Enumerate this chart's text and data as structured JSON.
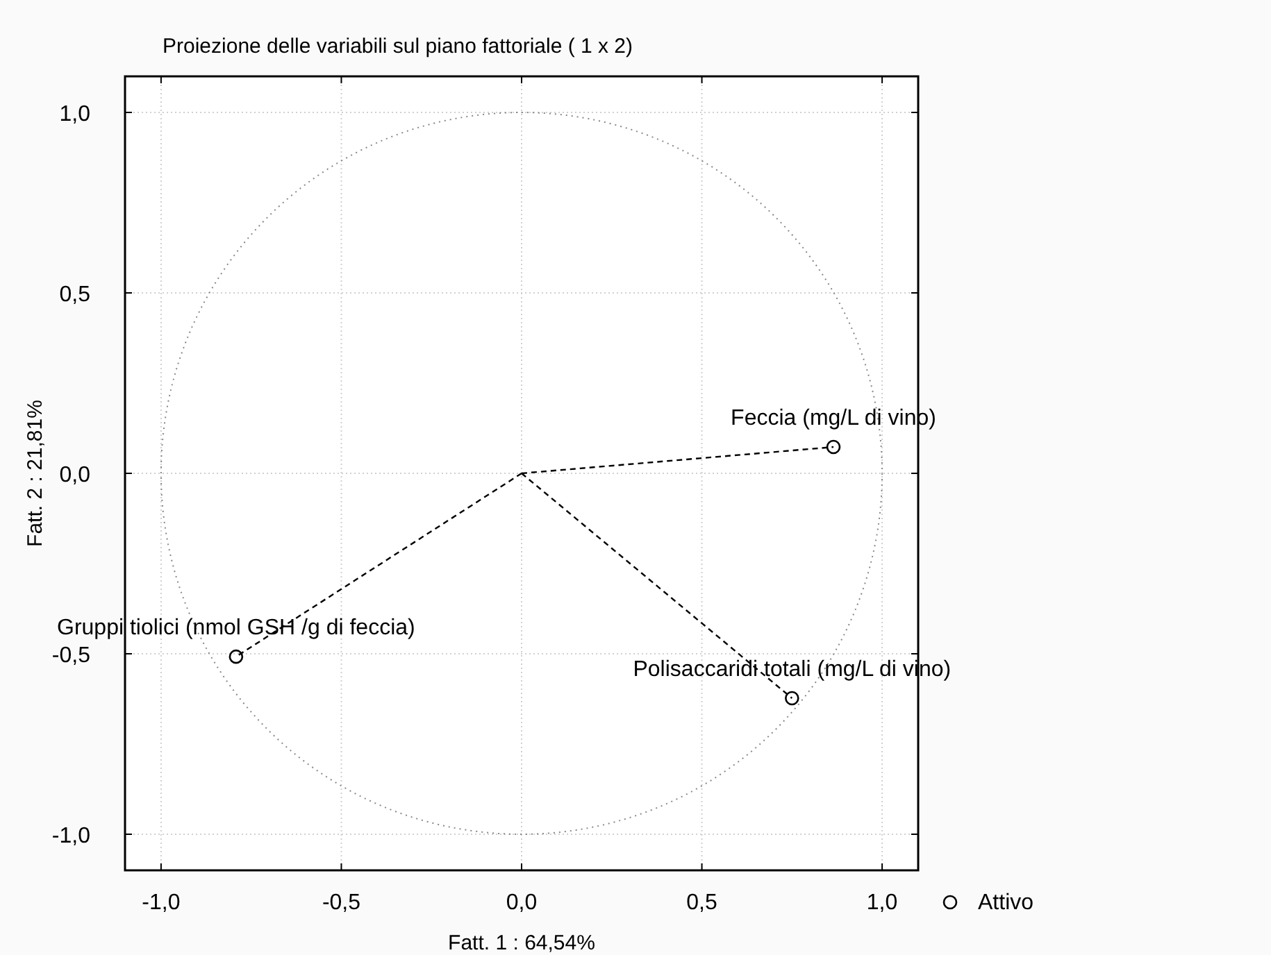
{
  "chart_data": {
    "type": "scatter",
    "title": "Proiezione delle variabili sul piano fattoriale (  1 x   2)",
    "xlabel": "Fatt.  1 : 64,54%",
    "ylabel": "Fatt.  2 : 21,81%",
    "xlim": [
      -1.1,
      1.1
    ],
    "ylim": [
      -1.1,
      1.1
    ],
    "xticks": [
      {
        "value": -1,
        "label": "-1,0"
      },
      {
        "value": -0.5,
        "label": "-0,5"
      },
      {
        "value": 0,
        "label": "0,0"
      },
      {
        "value": 0.5,
        "label": "0,5"
      },
      {
        "value": 1,
        "label": "1,0"
      }
    ],
    "yticks": [
      {
        "value": -1,
        "label": "-1,0"
      },
      {
        "value": -0.5,
        "label": "-0,5"
      },
      {
        "value": 0,
        "label": "0,0"
      },
      {
        "value": 0.5,
        "label": "0,5"
      },
      {
        "value": 1,
        "label": "1,0"
      }
    ],
    "grid": true,
    "legend": "bottom right",
    "series": [
      {
        "type": "line",
        "color": "#000000",
        "line_style": "dashed",
        "x": [
          0,
          0.865
        ],
        "values": [
          0,
          0.073
        ]
      },
      {
        "type": "line",
        "color": "#000000",
        "line_style": "dashed",
        "x": [
          0,
          -0.792
        ],
        "values": [
          0,
          -0.508
        ]
      },
      {
        "type": "line",
        "color": "#000000",
        "line_style": "dashed",
        "x": [
          0,
          0.75
        ],
        "values": [
          0,
          -0.623
        ]
      },
      {
        "name": "Attivo",
        "color": "#000000",
        "marker": "circle",
        "x": [
          0.865,
          -0.792,
          0.75
        ],
        "values": [
          0.073,
          -0.508,
          -0.623
        ]
      }
    ],
    "annotations": [
      {
        "text": "Feccia (mg/L di vino)",
        "x": 0.865,
        "y": 0.073
      },
      {
        "text": "Gruppi tiolici (nmol GSH /g di feccia)",
        "x": -0.792,
        "y": -0.508
      },
      {
        "text": "Polisaccaridi totali (mg/L di vino)",
        "x": 0.75,
        "y": -0.623
      }
    ]
  }
}
